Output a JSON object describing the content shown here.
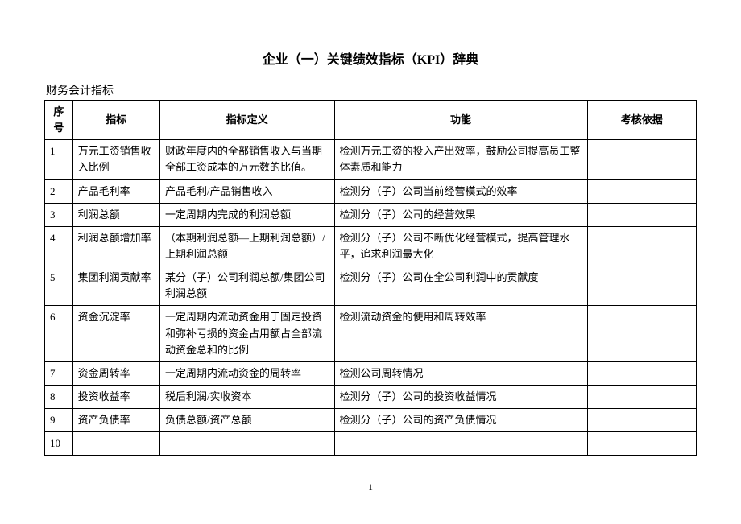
{
  "title": "企业（一）关键绩效指标（KPI）辞典",
  "subtitle": "财务会计指标",
  "pageNumber": "1",
  "table": {
    "headers": {
      "num": "序号",
      "indicator": "指标",
      "definition": "指标定义",
      "function": "功能",
      "basis": "考核依据"
    },
    "rows": [
      {
        "num": "1",
        "indicator": "万元工资销售收入比例",
        "definition": "财政年度内的全部销售收入与当期全部工资成本的万元数的比值。",
        "function": "检测万元工资的投入产出效率，鼓励公司提高员工整体素质和能力",
        "basis": ""
      },
      {
        "num": "2",
        "indicator": "产品毛利率",
        "definition": "产品毛利/产品销售收入",
        "function": "检测分（子）公司当前经营模式的效率",
        "basis": ""
      },
      {
        "num": "3",
        "indicator": "利润总额",
        "definition": "一定周期内完成的利润总额",
        "function": "检测分（子）公司的经营效果",
        "basis": ""
      },
      {
        "num": "4",
        "indicator": "利润总额增加率",
        "definition": "（本期利润总额—上期利润总额）/上期利润总额",
        "function": "检测分（子）公司不断优化经营模式，提高管理水平，追求利润最大化",
        "basis": ""
      },
      {
        "num": "5",
        "indicator": "集团利润贡献率",
        "definition": "某分（子）公司利润总额/集团公司利润总额",
        "function": "检测分（子）公司在全公司利润中的贡献度",
        "basis": ""
      },
      {
        "num": "6",
        "indicator": "资金沉淀率",
        "definition": "一定周期内流动资金用于固定投资和弥补亏损的资金占用额占全部流动资金总和的比例",
        "function": "检测流动资金的使用和周转效率",
        "basis": ""
      },
      {
        "num": "7",
        "indicator": "资金周转率",
        "definition": "一定周期内流动资金的周转率",
        "function": "检测公司周转情况",
        "basis": ""
      },
      {
        "num": "8",
        "indicator": "投资收益率",
        "definition": "税后利润/实收资本",
        "function": "检测分（子）公司的投资收益情况",
        "basis": ""
      },
      {
        "num": "9",
        "indicator": "资产负债率",
        "definition": "负债总额/资产总额",
        "function": "检测分（子）公司的资产负债情况",
        "basis": ""
      },
      {
        "num": "10",
        "indicator": "",
        "definition": "",
        "function": "",
        "basis": ""
      }
    ]
  }
}
